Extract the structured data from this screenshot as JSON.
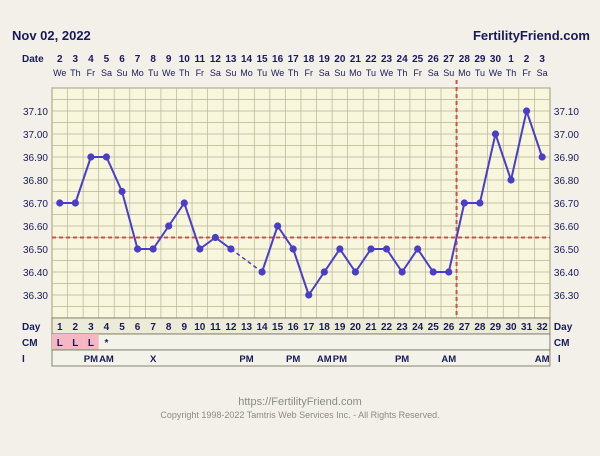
{
  "header": {
    "date": "Nov 02, 2022",
    "site": "FertilityFriend.com"
  },
  "colors": {
    "line": "#4a3ec8",
    "coverline": "#d0504a",
    "grid": "#b8b496",
    "chart_bg": "#f8f6dc",
    "label": "#1a1a5a",
    "cm_pink": "#f4b8c4"
  },
  "chart_data": {
    "type": "line",
    "title": "",
    "row_labels": {
      "date": "Date",
      "day": "Day",
      "cm": "CM",
      "i": "I"
    },
    "dates": [
      "2",
      "3",
      "4",
      "5",
      "6",
      "7",
      "8",
      "9",
      "10",
      "11",
      "12",
      "13",
      "14",
      "15",
      "16",
      "17",
      "18",
      "19",
      "20",
      "21",
      "22",
      "23",
      "24",
      "25",
      "26",
      "27",
      "28",
      "29",
      "30",
      "1",
      "2",
      "3"
    ],
    "weekdays": [
      "We",
      "Th",
      "Fr",
      "Sa",
      "Su",
      "Mo",
      "Tu",
      "We",
      "Th",
      "Fr",
      "Sa",
      "Su",
      "Mo",
      "Tu",
      "We",
      "Th",
      "Fr",
      "Sa",
      "Su",
      "Mo",
      "Tu",
      "We",
      "Th",
      "Fr",
      "Sa",
      "Su",
      "Mo",
      "Tu",
      "We",
      "Th",
      "Fr",
      "Sa"
    ],
    "days": [
      1,
      2,
      3,
      4,
      5,
      6,
      7,
      8,
      9,
      10,
      11,
      12,
      13,
      14,
      15,
      16,
      17,
      18,
      19,
      20,
      21,
      22,
      23,
      24,
      25,
      26,
      27,
      28,
      29,
      30,
      31,
      32
    ],
    "temps": [
      36.7,
      36.7,
      36.9,
      36.9,
      36.75,
      36.5,
      36.5,
      36.6,
      36.7,
      36.5,
      36.55,
      36.5,
      null,
      36.4,
      36.6,
      36.5,
      36.3,
      36.4,
      36.5,
      36.4,
      36.5,
      36.5,
      36.4,
      36.5,
      36.4,
      36.4,
      36.7,
      36.7,
      37.0,
      36.8,
      37.1,
      36.9
    ],
    "ylim": [
      36.2,
      37.2
    ],
    "yticks": [
      "37.10",
      "37.00",
      "36.90",
      "36.80",
      "36.70",
      "36.60",
      "36.50",
      "36.40",
      "36.30"
    ],
    "coverline": 36.55,
    "ovulation_day": 26,
    "cm_row": [
      "L",
      "L",
      "L",
      "*",
      "",
      "",
      "",
      "",
      "",
      "",
      "",
      "",
      "",
      "",
      "",
      "",
      "",
      "",
      "",
      "",
      "",
      "",
      "",
      "",
      "",
      "",
      "",
      "",
      "",
      "",
      "",
      ""
    ],
    "i_row": [
      "",
      "",
      "PM",
      "AM",
      "",
      "",
      "X",
      "",
      "",
      "",
      "",
      "",
      "PM",
      "",
      "",
      "PM",
      "",
      "AM",
      "PM",
      "",
      "",
      "",
      "PM",
      "",
      "",
      "AM",
      "",
      "",
      "",
      "",
      "",
      "AM"
    ],
    "i_trailing": "I"
  },
  "footer": {
    "url": "https://FertilityFriend.com",
    "copyright": "Copyright 1998-2022 Tamtris Web Services Inc. - All Rights Reserved."
  }
}
